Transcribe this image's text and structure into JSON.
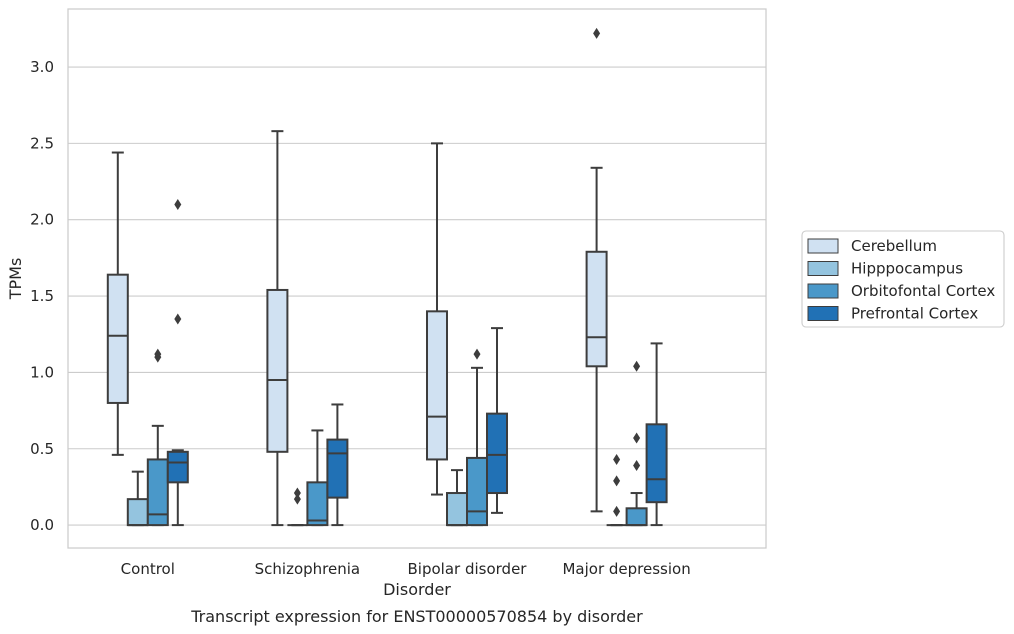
{
  "chart_data": {
    "type": "box",
    "title": "",
    "caption": "Transcript expression for ENST00000570854 by disorder",
    "xlabel": "Disorder",
    "ylabel": "TPMs",
    "ylim": [
      -0.15,
      3.38
    ],
    "yticks": [
      0.0,
      0.5,
      1.0,
      1.5,
      2.0,
      2.5,
      3.0
    ],
    "ytick_labels": [
      "0.0",
      "0.5",
      "1.0",
      "1.5",
      "2.0",
      "2.5",
      "3.0"
    ],
    "grid": "horizontal",
    "legend_placement": "right",
    "categories": [
      "Control",
      "Schizophrenia",
      "Bipolar disorder",
      "Major depression"
    ],
    "series": [
      {
        "name": "Cerebellum",
        "color": "#d0e1f2",
        "boxes": [
          {
            "whisker_low": 0.46,
            "q1": 0.8,
            "median": 1.24,
            "q3": 1.64,
            "whisker_high": 2.44,
            "outliers": []
          },
          {
            "whisker_low": 0.0,
            "q1": 0.48,
            "median": 0.95,
            "q3": 1.54,
            "whisker_high": 2.58,
            "outliers": []
          },
          {
            "whisker_low": 0.2,
            "q1": 0.43,
            "median": 0.71,
            "q3": 1.4,
            "whisker_high": 2.5,
            "outliers": []
          },
          {
            "whisker_low": 0.09,
            "q1": 1.04,
            "median": 1.23,
            "q3": 1.79,
            "whisker_high": 2.34,
            "outliers": [
              3.22
            ]
          }
        ]
      },
      {
        "name": "Hipppocampus",
        "color": "#94c4df",
        "boxes": [
          {
            "whisker_low": 0.0,
            "q1": 0.0,
            "median": 0.0,
            "q3": 0.17,
            "whisker_high": 0.35,
            "outliers": []
          },
          {
            "whisker_low": 0.0,
            "q1": 0.0,
            "median": 0.0,
            "q3": 0.0,
            "whisker_high": 0.0,
            "outliers": [
              0.17,
              0.21
            ]
          },
          {
            "whisker_low": 0.0,
            "q1": 0.0,
            "median": 0.0,
            "q3": 0.21,
            "whisker_high": 0.36,
            "outliers": []
          },
          {
            "whisker_low": 0.0,
            "q1": 0.0,
            "median": 0.0,
            "q3": 0.0,
            "whisker_high": 0.0,
            "outliers": [
              0.09,
              0.29,
              0.43
            ]
          }
        ]
      },
      {
        "name": "Orbitofontal Cortex",
        "color": "#4a98c9",
        "boxes": [
          {
            "whisker_low": 0.0,
            "q1": 0.0,
            "median": 0.07,
            "q3": 0.43,
            "whisker_high": 0.65,
            "outliers": [
              1.1,
              1.12
            ]
          },
          {
            "whisker_low": 0.0,
            "q1": 0.0,
            "median": 0.03,
            "q3": 0.28,
            "whisker_high": 0.62,
            "outliers": []
          },
          {
            "whisker_low": 0.0,
            "q1": 0.0,
            "median": 0.09,
            "q3": 0.44,
            "whisker_high": 1.03,
            "outliers": [
              1.12
            ]
          },
          {
            "whisker_low": 0.0,
            "q1": 0.0,
            "median": 0.0,
            "q3": 0.11,
            "whisker_high": 0.21,
            "outliers": [
              0.39,
              0.57,
              1.04
            ]
          }
        ]
      },
      {
        "name": "Prefrontal Cortex",
        "color": "#2171b5",
        "boxes": [
          {
            "whisker_low": 0.0,
            "q1": 0.28,
            "median": 0.41,
            "q3": 0.48,
            "whisker_high": 0.49,
            "outliers": [
              1.35,
              2.1
            ]
          },
          {
            "whisker_low": 0.0,
            "q1": 0.18,
            "median": 0.47,
            "q3": 0.56,
            "whisker_high": 0.79,
            "outliers": []
          },
          {
            "whisker_low": 0.08,
            "q1": 0.21,
            "median": 0.46,
            "q3": 0.73,
            "whisker_high": 1.29,
            "outliers": []
          },
          {
            "whisker_low": 0.0,
            "q1": 0.15,
            "median": 0.3,
            "q3": 0.66,
            "whisker_high": 1.19,
            "outliers": []
          }
        ]
      }
    ]
  }
}
